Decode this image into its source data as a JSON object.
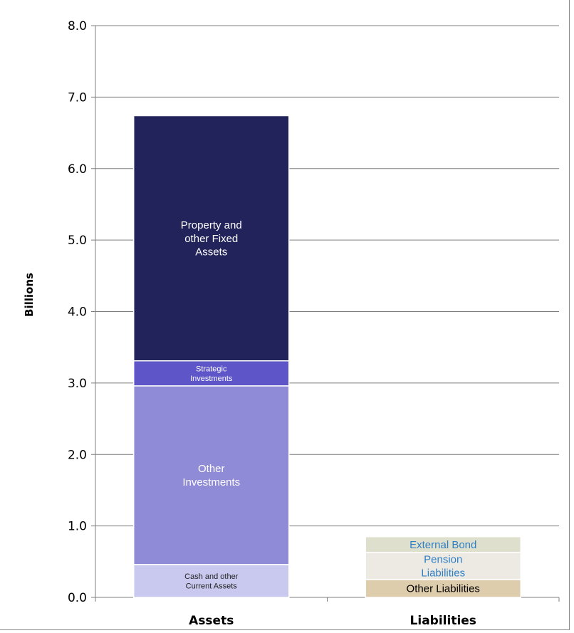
{
  "chart_data": {
    "type": "bar",
    "stacked": true,
    "categories": [
      "Assets",
      "Liabilities"
    ],
    "ylabel": "Billions",
    "ylim": [
      0,
      8
    ],
    "yticks": [
      "0.0",
      "1.0",
      "2.0",
      "3.0",
      "4.0",
      "5.0",
      "6.0",
      "7.0",
      "8.0"
    ],
    "grid": true,
    "legend": "none",
    "series": [
      {
        "name": "Cash and other Current Assets",
        "category": "Assets",
        "value": 0.46,
        "color": "#c9c9ef",
        "label_color": "#222222",
        "label_lines": [
          "Cash and other",
          "Current Assets"
        ]
      },
      {
        "name": "Other Investments",
        "category": "Assets",
        "value": 2.5,
        "color": "#8f8bd6",
        "label_color": "#ffffff",
        "label_lines": [
          "Other",
          "Investments"
        ]
      },
      {
        "name": "Strategic Investments",
        "category": "Assets",
        "value": 0.35,
        "color": "#5e55c8",
        "label_color": "#ffffff",
        "label_lines": [
          "Strategic",
          "Investments"
        ]
      },
      {
        "name": "Property and other Fixed Assets",
        "category": "Assets",
        "value": 3.43,
        "color": "#23235c",
        "label_color": "#ffffff",
        "label_lines": [
          "Property and",
          "other Fixed",
          "Assets"
        ]
      },
      {
        "name": "Other Liabilities",
        "category": "Liabilities",
        "value": 0.25,
        "color": "#decdad",
        "label_color": "#000000",
        "label_lines": [
          "Other Liabilities"
        ]
      },
      {
        "name": "Pension Liabilities",
        "category": "Liabilities",
        "value": 0.38,
        "color": "#eceae2",
        "label_color": "#2f7fc6",
        "label_lines": [
          "Pension",
          "Liabilities"
        ]
      },
      {
        "name": "External Bond",
        "category": "Liabilities",
        "value": 0.22,
        "color": "#dfdfcd",
        "label_color": "#2f7fc6",
        "label_lines": [
          "External Bond"
        ]
      }
    ]
  }
}
